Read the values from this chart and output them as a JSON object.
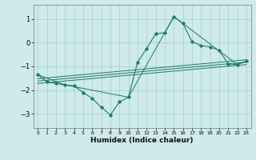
{
  "xlabel": "Humidex (Indice chaleur)",
  "background_color": "#ceeaea",
  "grid_color": "#aacccc",
  "line_color": "#1a7a6e",
  "xlim": [
    -0.5,
    23.5
  ],
  "ylim": [
    -3.6,
    1.6
  ],
  "xticks": [
    0,
    1,
    2,
    3,
    4,
    5,
    6,
    7,
    8,
    9,
    10,
    11,
    12,
    13,
    14,
    15,
    16,
    17,
    18,
    19,
    20,
    21,
    22,
    23
  ],
  "yticks": [
    -3,
    -2,
    -1,
    0,
    1
  ],
  "line1_x": [
    0,
    1,
    2,
    3,
    4,
    5,
    6,
    7,
    8,
    9,
    10,
    11,
    12,
    13,
    14,
    15,
    16,
    17,
    18,
    19,
    20,
    21,
    22,
    23
  ],
  "line1_y": [
    -1.35,
    -1.65,
    -1.72,
    -1.78,
    -1.82,
    -2.1,
    -2.35,
    -2.72,
    -3.05,
    -2.5,
    -2.3,
    -0.82,
    -0.25,
    0.38,
    0.42,
    1.1,
    0.82,
    0.05,
    -0.12,
    -0.18,
    -0.32,
    -0.9,
    -0.92,
    -0.78
  ],
  "line2_x": [
    0,
    3,
    10,
    15,
    22,
    23
  ],
  "line2_y": [
    -1.35,
    -1.78,
    -2.3,
    1.1,
    -0.92,
    -0.78
  ],
  "line3_x": [
    0,
    23
  ],
  "line3_y": [
    -1.52,
    -0.72
  ],
  "line4_x": [
    0,
    23
  ],
  "line4_y": [
    -1.62,
    -0.82
  ],
  "line5_x": [
    0,
    23
  ],
  "line5_y": [
    -1.72,
    -0.92
  ]
}
